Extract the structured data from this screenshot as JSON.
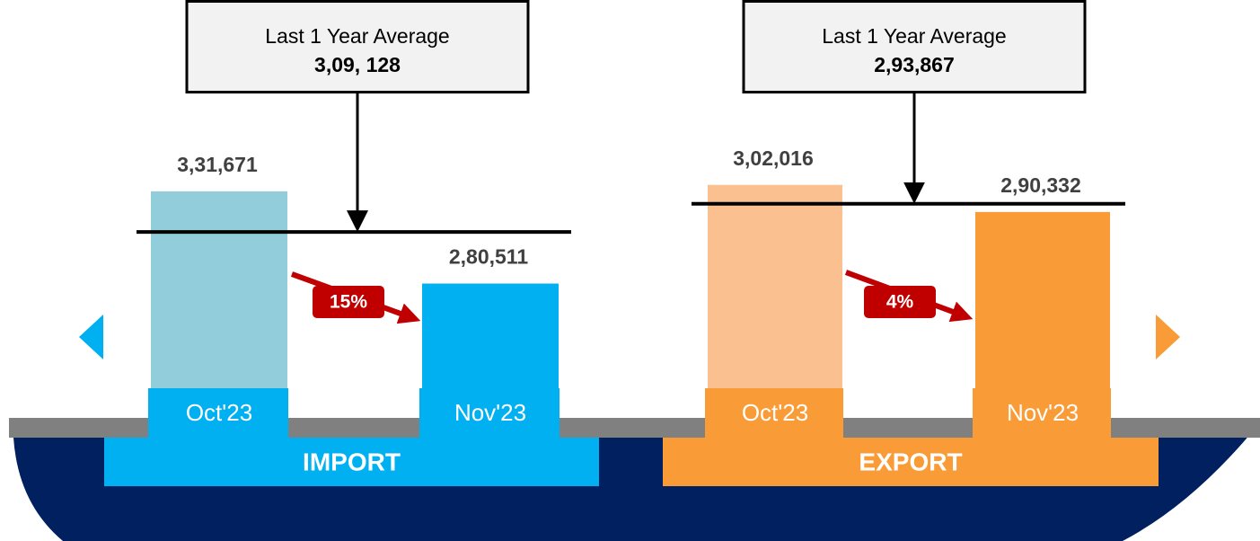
{
  "chart_data": [
    {
      "type": "bar",
      "title": "IMPORT",
      "categories": [
        "Oct'23",
        "Nov'23"
      ],
      "values": [
        331671,
        280511
      ],
      "value_labels": [
        "3,31,671",
        "2,80,511"
      ],
      "colors": [
        "#92cddc",
        "#00b0f0"
      ],
      "color": "#00b0f0",
      "ylim": [
        195000,
        388000
      ],
      "average_title": "Last 1 Year Average",
      "average": 309128,
      "average_label": "3,09, 128",
      "annotation": "15%"
    },
    {
      "type": "bar",
      "title": "EXPORT",
      "categories": [
        "Oct'23",
        "Nov'23"
      ],
      "values": [
        302016,
        290332
      ],
      "value_labels": [
        "3,02,016",
        "2,90,332"
      ],
      "colors": [
        "#fac090",
        "#f99b36"
      ],
      "color": "#f99b36",
      "ylim": [
        193000,
        343000
      ],
      "average_title": "Last 1 Year Average",
      "average": 293867,
      "average_label": "2,93,867",
      "annotation": "4%"
    }
  ]
}
